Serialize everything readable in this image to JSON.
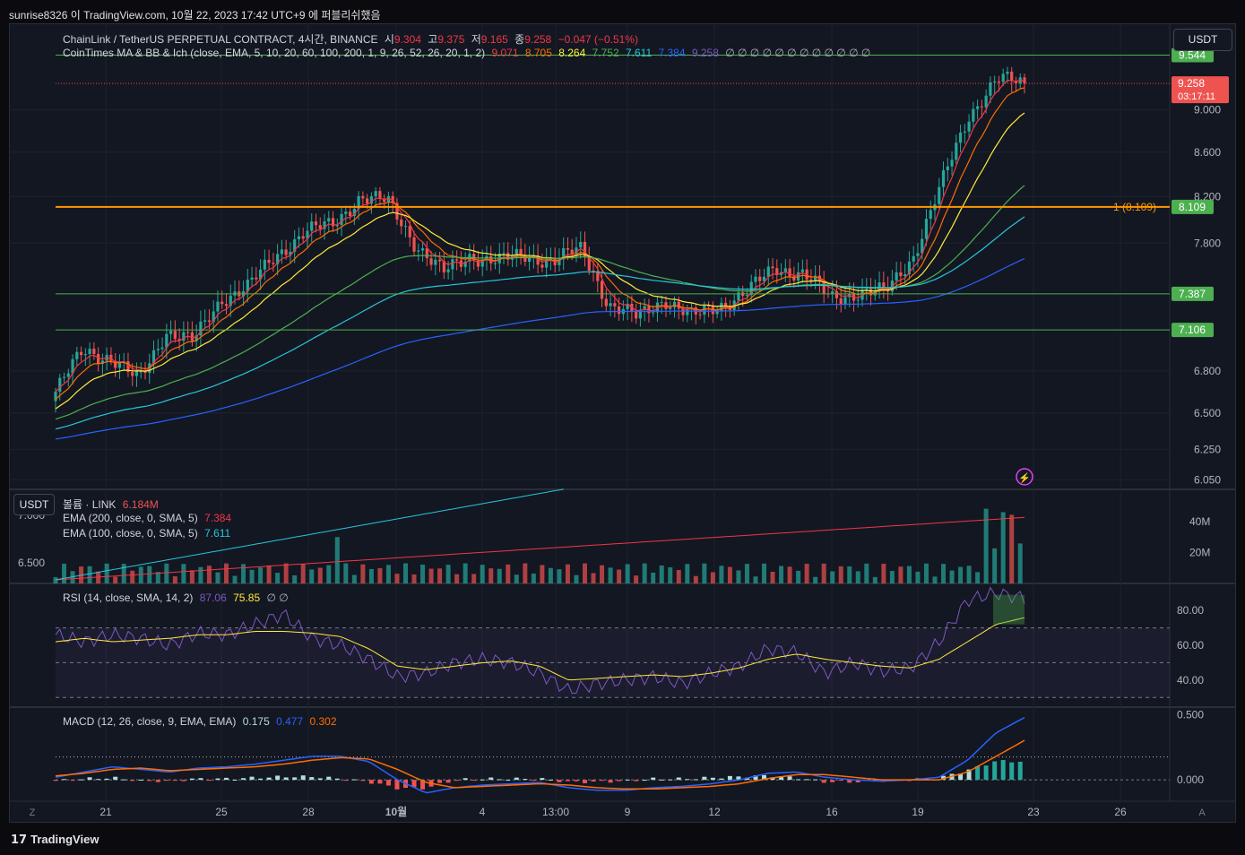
{
  "header": {
    "attribution": "sunrise8326 이 TradingView.com, 10월 22, 2023 17:42 UTC+9 에 퍼블리쉬했음"
  },
  "currency_button": "USDT",
  "left_currency_button": "USDT",
  "brand": {
    "logo_text": "TradingView",
    "logo_glyph": "𝟭𝟳"
  },
  "legend": {
    "main": {
      "symbol": "ChainLink / TetherUS PERPETUAL CONTRACT, 4시간, BINANCE",
      "o_label": "시",
      "o": "9.304",
      "h_label": "고",
      "h": "9.375",
      "l_label": "저",
      "l": "9.165",
      "c_label": "종",
      "c": "9.258",
      "chg": "−0.047 (−0.51%)"
    },
    "indicator": {
      "name": "CoinTimes MA & BB & Ich (close, EMA, 5, 10, 20, 60, 100, 200, 1, 9, 26, 52, 26, 20, 1, 2)",
      "values": [
        {
          "v": "9.071",
          "color": "#f23645"
        },
        {
          "v": "8.705",
          "color": "#ff6d00"
        },
        {
          "v": "8.264",
          "color": "#ffeb3b"
        },
        {
          "v": "7.752",
          "color": "#4caf50"
        },
        {
          "v": "7.611",
          "color": "#26c6da"
        },
        {
          "v": "7.384",
          "color": "#2962ff"
        },
        {
          "v": "9.258",
          "color": "#7e57c2"
        }
      ],
      "empty": "∅ ∅ ∅ ∅ ∅ ∅ ∅ ∅ ∅ ∅ ∅ ∅"
    },
    "volume": {
      "label": "볼륨 · LINK",
      "value": "6.184M"
    },
    "ema200": {
      "label": "EMA (200, close, 0, SMA, 5)",
      "value": "7.384"
    },
    "ema100": {
      "label": "EMA (100, close, 0, SMA, 5)",
      "value": "7.611"
    },
    "rsi": {
      "label": "RSI (14, close, SMA, 14, 2)",
      "rsi": "87.06",
      "sma": "75.85",
      "empty": "∅ ∅"
    },
    "macd": {
      "label": "MACD (12, 26, close, 9, EMA, EMA)",
      "hist": "0.175",
      "macd": "0.477",
      "signal": "0.302"
    }
  },
  "colors": {
    "up": "#26a69a",
    "down": "#ef5350",
    "ema5": "#f23645",
    "ema10": "#ff6d00",
    "ema20": "#ffeb3b",
    "ema60": "#4caf50",
    "ema100": "#26c6da",
    "ema200": "#2962ff",
    "hline_green": "#4caf50",
    "hline_orange": "#ff9800"
  },
  "chart_data": [
    {
      "type": "candlestick",
      "title": "ChainLink / TetherUS PERPETUAL CONTRACT, 4시간, BINANCE",
      "timeframe": "4h",
      "x_tick_labels": [
        "21",
        "25",
        "28",
        "10월",
        "4",
        "13:00",
        "9",
        "12",
        "16",
        "19",
        "23",
        "26"
      ],
      "y_tick_labels": [
        "9.000",
        "8.600",
        "8.200",
        "7.800",
        "6.800",
        "6.500",
        "6.250",
        "6.050"
      ],
      "ylim": [
        6.0,
        9.8
      ],
      "y_scale": "log",
      "price_points": [
        {
          "t": "Sep 19",
          "v": 6.65
        },
        {
          "t": "Sep 20",
          "v": 6.95
        },
        {
          "t": "Sep 21",
          "v": 6.9
        },
        {
          "t": "Sep 22",
          "v": 6.72
        },
        {
          "t": "Sep 24",
          "v": 7.1
        },
        {
          "t": "Sep 25",
          "v": 7.02
        },
        {
          "t": "Sep 26",
          "v": 7.35
        },
        {
          "t": "Sep 27",
          "v": 7.45
        },
        {
          "t": "Sep 28",
          "v": 7.7
        },
        {
          "t": "Sep 29",
          "v": 7.9
        },
        {
          "t": "Sep 30",
          "v": 7.95
        },
        {
          "t": "Oct 1",
          "v": 8.2
        },
        {
          "t": "Oct 2",
          "v": 8.15
        },
        {
          "t": "Oct 3",
          "v": 7.8
        },
        {
          "t": "Oct 4",
          "v": 7.55
        },
        {
          "t": "Oct 5",
          "v": 7.7
        },
        {
          "t": "Oct 6",
          "v": 7.65
        },
        {
          "t": "Oct 7",
          "v": 7.7
        },
        {
          "t": "Oct 8",
          "v": 7.65
        },
        {
          "t": "Oct 9",
          "v": 7.75
        },
        {
          "t": "Oct 10",
          "v": 7.3
        },
        {
          "t": "Oct 11",
          "v": 7.2
        },
        {
          "t": "Oct 12",
          "v": 7.35
        },
        {
          "t": "Oct 13",
          "v": 7.2
        },
        {
          "t": "Oct 14",
          "v": 7.3
        },
        {
          "t": "Oct 15",
          "v": 7.4
        },
        {
          "t": "Oct 16",
          "v": 7.6
        },
        {
          "t": "Oct 17",
          "v": 7.55
        },
        {
          "t": "Oct 18",
          "v": 7.35
        },
        {
          "t": "Oct 19",
          "v": 7.4
        },
        {
          "t": "Oct 20",
          "v": 7.4
        },
        {
          "t": "Oct 21",
          "v": 7.7
        },
        {
          "t": "Oct 21 16:00",
          "v": 8.3
        },
        {
          "t": "Oct 21 20:00",
          "v": 8.95
        },
        {
          "t": "Oct 22",
          "v": 9.3
        },
        {
          "t": "Oct 22 16:00",
          "v": 9.258
        }
      ],
      "last_candle": {
        "open": 9.304,
        "high": 9.375,
        "low": 9.165,
        "close": 9.258
      },
      "horizontal_lines": [
        {
          "value": 9.544,
          "label": "9.544",
          "color": "#4caf50"
        },
        {
          "value": 8.109,
          "label": "8.109",
          "color": "#ff9800",
          "annotation": "1 (8.109)"
        },
        {
          "value": 7.387,
          "label": "7.387",
          "color": "#4caf50"
        },
        {
          "value": 7.106,
          "label": "7.106",
          "color": "#4caf50"
        }
      ],
      "current_price": {
        "value": 9.258,
        "label": "9.258",
        "countdown": "03:17:11"
      },
      "moving_averages": [
        {
          "name": "EMA 5",
          "last": 9.071
        },
        {
          "name": "EMA 10",
          "last": 8.705
        },
        {
          "name": "EMA 20",
          "last": 8.264
        },
        {
          "name": "EMA 60",
          "last": 7.752
        },
        {
          "name": "EMA 100",
          "last": 7.611
        },
        {
          "name": "EMA 200",
          "last": 7.384
        }
      ]
    },
    {
      "type": "bar",
      "title": "볼륨 · LINK",
      "y_tick_labels": [
        "40M",
        "20M"
      ],
      "last_value": "6.184M",
      "spikes": [
        {
          "t": "Sep 27",
          "v": 30
        },
        {
          "t": "Oct 21 16:00",
          "v": 50
        },
        {
          "t": "Oct 21 20:00",
          "v": 45
        },
        {
          "t": "Oct 22",
          "v": 50
        }
      ],
      "left_axis_labels": [
        "7.000",
        "6.500"
      ]
    },
    {
      "type": "line",
      "title": "RSI (14, close, SMA, 14, 2)",
      "y_tick_labels": [
        "80.00",
        "60.00",
        "40.00"
      ],
      "ylim": [
        25,
        95
      ],
      "bands": [
        70,
        50,
        30
      ],
      "series": [
        {
          "name": "RSI",
          "last": 87.06,
          "points": [
            66,
            62,
            66,
            64,
            60,
            67,
            66,
            72,
            78,
            64,
            60,
            52,
            42,
            44,
            50,
            52,
            50,
            44,
            34,
            38,
            40,
            42,
            38,
            44,
            48,
            58,
            56,
            44,
            50,
            45,
            47,
            62,
            86,
            90,
            87.06
          ]
        },
        {
          "name": "SMA",
          "last": 75.85,
          "points": [
            62,
            64,
            62,
            63,
            64,
            66,
            66,
            68,
            68,
            67,
            65,
            58,
            48,
            46,
            48,
            50,
            51,
            48,
            40,
            41,
            42,
            43,
            42,
            44,
            47,
            52,
            55,
            52,
            50,
            48,
            47,
            52,
            62,
            72,
            75.85
          ]
        }
      ]
    },
    {
      "type": "line",
      "title": "MACD (12, 26, close, 9, EMA, EMA)",
      "y_tick_labels": [
        "0.500",
        "0.000"
      ],
      "ylim": [
        -0.15,
        0.55
      ],
      "series": [
        {
          "name": "Histogram",
          "last": 0.175
        },
        {
          "name": "MACD",
          "last": 0.477,
          "points": [
            0.02,
            0.06,
            0.1,
            0.08,
            0.06,
            0.09,
            0.1,
            0.12,
            0.15,
            0.18,
            0.18,
            0.14,
            0.0,
            -0.1,
            -0.06,
            -0.04,
            -0.03,
            -0.02,
            -0.06,
            -0.08,
            -0.08,
            -0.06,
            -0.05,
            -0.03,
            0.0,
            0.05,
            0.06,
            0.02,
            0.0,
            -0.01,
            0.0,
            0.02,
            0.15,
            0.36,
            0.477
          ]
        },
        {
          "name": "Signal",
          "last": 0.302,
          "points": [
            0.03,
            0.05,
            0.08,
            0.09,
            0.07,
            0.08,
            0.09,
            0.1,
            0.12,
            0.15,
            0.17,
            0.16,
            0.08,
            -0.02,
            -0.06,
            -0.05,
            -0.04,
            -0.03,
            -0.04,
            -0.06,
            -0.07,
            -0.07,
            -0.06,
            -0.05,
            -0.03,
            0.01,
            0.04,
            0.04,
            0.02,
            0.0,
            0.0,
            0.0,
            0.06,
            0.18,
            0.302
          ]
        }
      ]
    }
  ]
}
